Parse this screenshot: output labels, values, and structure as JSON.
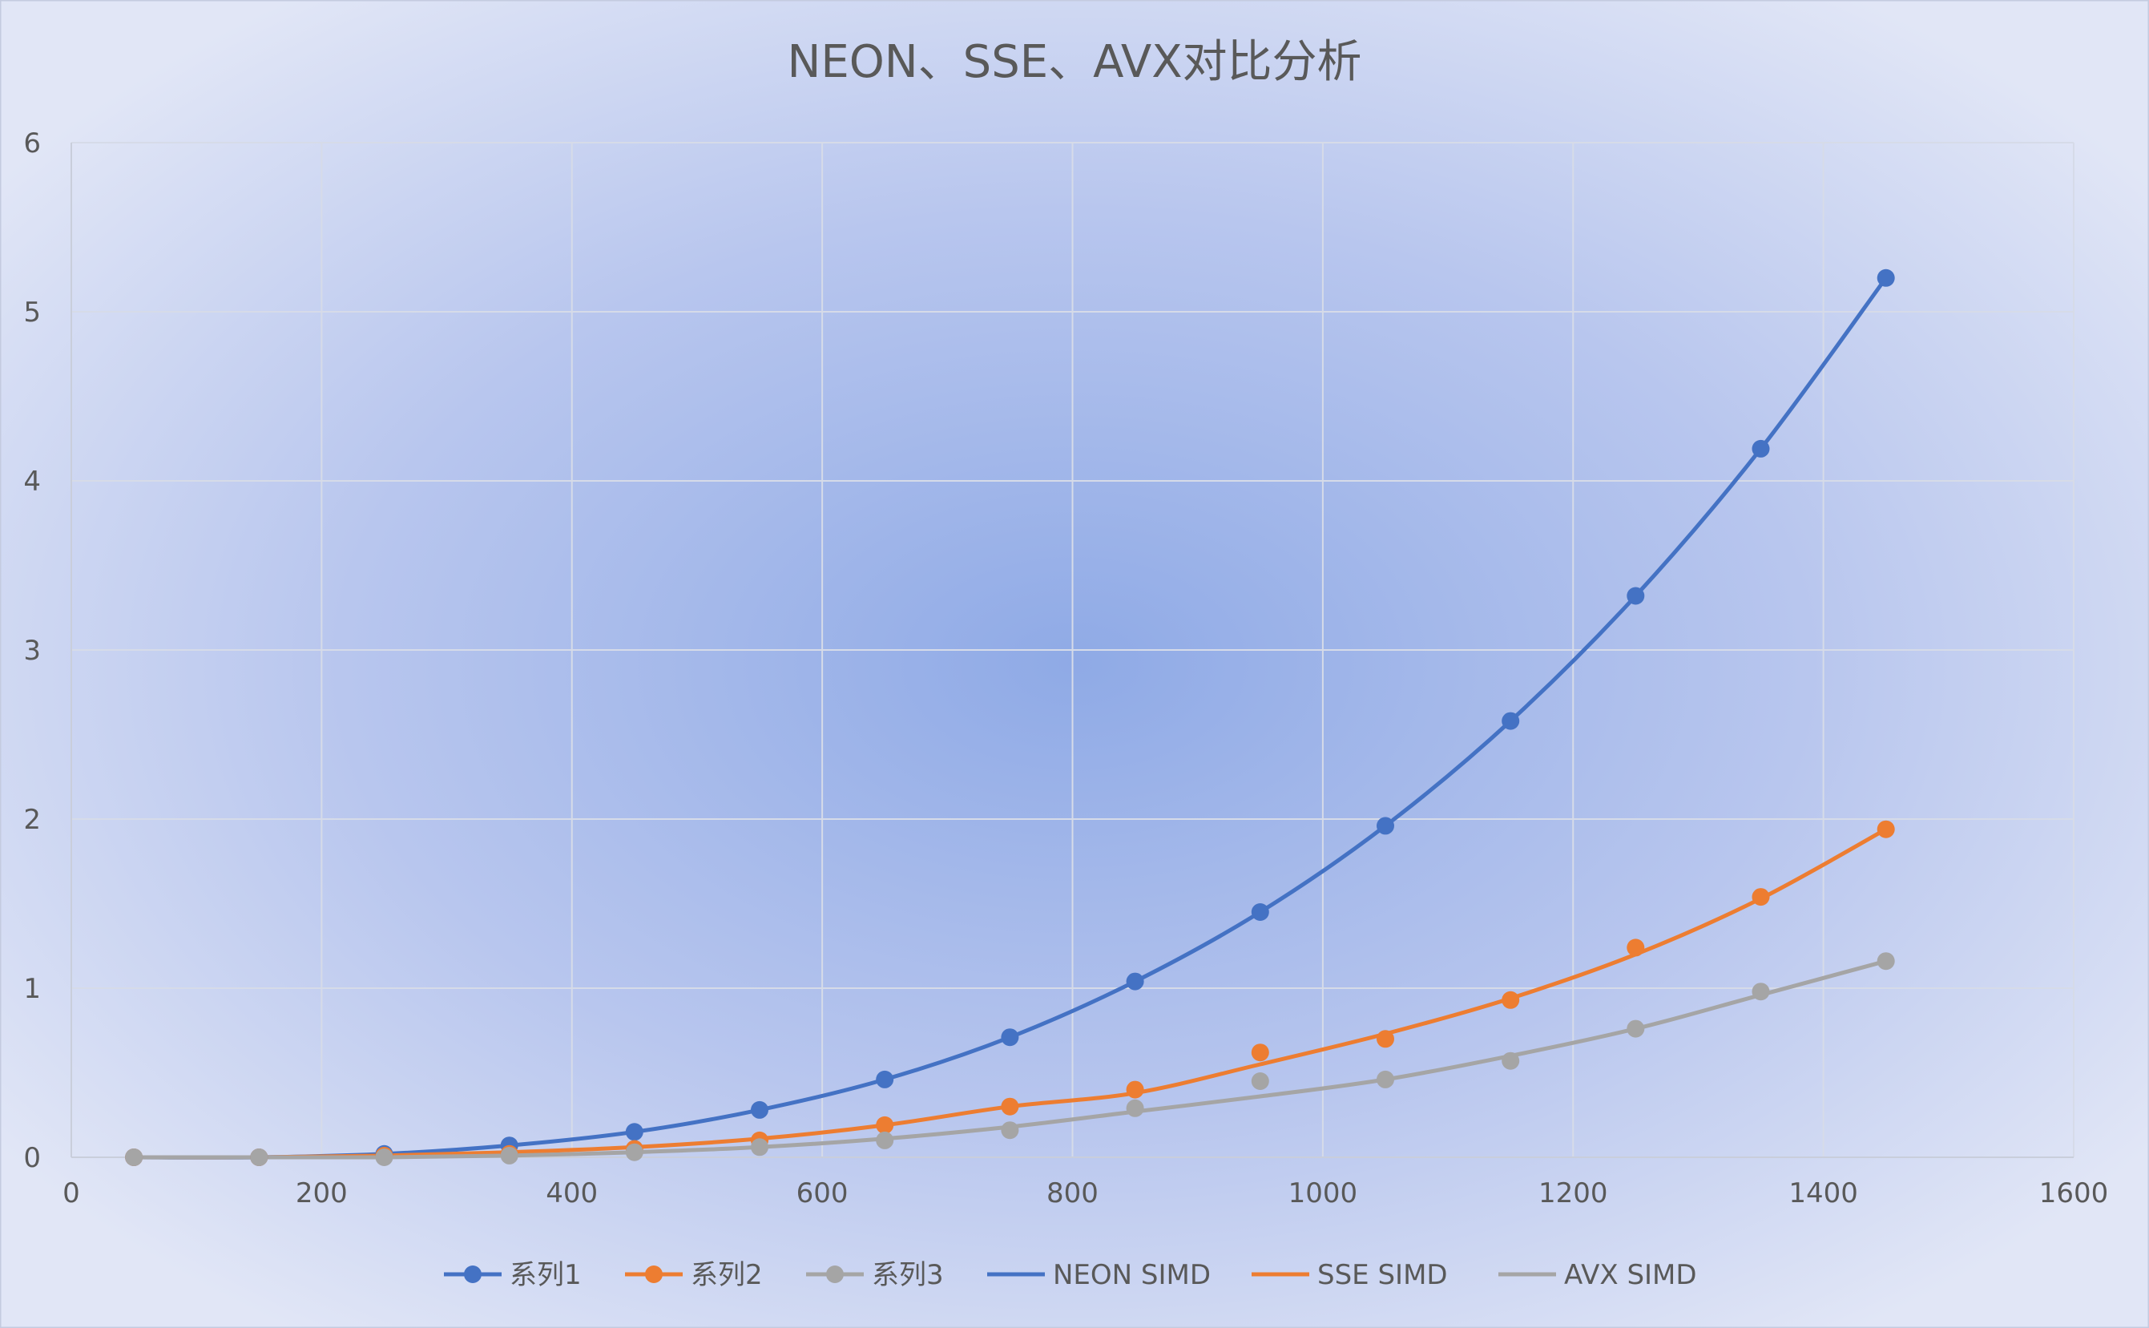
{
  "chart_data": {
    "type": "scatter",
    "title": "NEON、SSE、AVX对比分析",
    "xlabel": "",
    "ylabel": "",
    "xlim": [
      0,
      1600
    ],
    "ylim": [
      0,
      6
    ],
    "x_ticks": [
      "0",
      "200",
      "400",
      "600",
      "800",
      "1000",
      "1200",
      "1400",
      "1600"
    ],
    "y_ticks": [
      "0",
      "1",
      "2",
      "3",
      "4",
      "5",
      "6"
    ],
    "grid": true,
    "legend_position": "bottom",
    "x": [
      50,
      150,
      250,
      350,
      450,
      550,
      650,
      750,
      850,
      950,
      1050,
      1150,
      1250,
      1350,
      1450
    ],
    "series": [
      {
        "name": "系列1",
        "kind": "markers",
        "color": "#4472C4",
        "values": [
          0.0,
          0.0,
          0.02,
          0.07,
          0.15,
          0.28,
          0.46,
          0.71,
          1.04,
          1.45,
          1.96,
          2.58,
          3.32,
          4.19,
          5.2
        ]
      },
      {
        "name": "系列2",
        "kind": "markers",
        "color": "#ED7D31",
        "values": [
          0.0,
          0.0,
          0.01,
          0.02,
          0.05,
          0.1,
          0.19,
          0.3,
          0.4,
          0.62,
          0.7,
          0.93,
          1.24,
          1.54,
          1.94
        ]
      },
      {
        "name": "系列3",
        "kind": "markers",
        "color": "#A5A5A5",
        "values": [
          0.0,
          0.0,
          0.0,
          0.01,
          0.03,
          0.06,
          0.1,
          0.16,
          0.29,
          0.45,
          0.46,
          0.57,
          0.76,
          0.98,
          1.16
        ]
      },
      {
        "name": "NEON SIMD",
        "kind": "trendline",
        "color": "#4472C4",
        "values": [
          0.0,
          0.0,
          0.02,
          0.07,
          0.15,
          0.28,
          0.46,
          0.71,
          1.04,
          1.45,
          1.96,
          2.58,
          3.32,
          4.19,
          5.2
        ]
      },
      {
        "name": "SSE SIMD",
        "kind": "trendline",
        "color": "#ED7D31",
        "values": [
          0.0,
          0.0,
          0.01,
          0.03,
          0.06,
          0.11,
          0.19,
          0.3,
          0.38,
          0.55,
          0.73,
          0.94,
          1.2,
          1.53,
          1.94
        ]
      },
      {
        "name": "AVX SIMD",
        "kind": "trendline",
        "color": "#A5A5A5",
        "values": [
          0.0,
          0.0,
          0.0,
          0.01,
          0.03,
          0.06,
          0.11,
          0.18,
          0.27,
          0.36,
          0.46,
          0.6,
          0.76,
          0.96,
          1.16
        ]
      }
    ]
  }
}
